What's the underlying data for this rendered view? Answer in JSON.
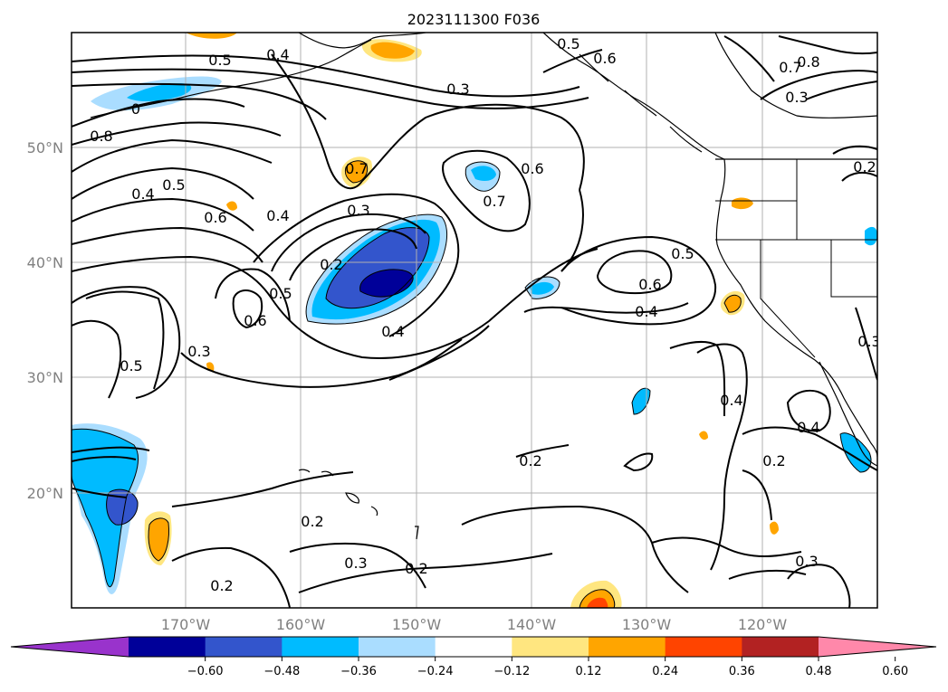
{
  "title": "2023111300 F036",
  "lat_labels": [
    "50°N",
    "40°N",
    "30°N",
    "20°N"
  ],
  "lon_labels": [
    "170°W",
    "160°W",
    "150°W",
    "140°W",
    "130°W",
    "120°W"
  ],
  "contour_labels": {
    "c01": "0.5",
    "c02": "0.4",
    "c03": "0.3",
    "c04": "0.5",
    "c05": "0.6",
    "c06": "0.7",
    "c07": "0.8",
    "c08": "0.3",
    "c09": "0",
    "c10": "0.8",
    "c11": "0.4",
    "c12": "0.5",
    "c13": "0.6",
    "c14": "0.7",
    "c15": "0.4",
    "c16": "0.3",
    "c17": "0.6",
    "c18": "0.7",
    "c19": "0.2",
    "c20": "0.2",
    "c21": "0.5",
    "c22": "0.6",
    "c23": "0.5",
    "c24": "0.6",
    "c25": "0.4",
    "c26": "0.4",
    "c27": "0.3",
    "c28": "0.5",
    "c29": "0.4",
    "c30": "0.4",
    "c31": "0.3",
    "c32": "0.2",
    "c33": "0.2",
    "c34": "0.2",
    "c35": "0.3",
    "c36": "0.2",
    "c37": "0.2",
    "c38": "0.3"
  },
  "colorbar": {
    "ticks": [
      "−0.60",
      "−0.48",
      "−0.36",
      "−0.24",
      "−0.12",
      "0.12",
      "0.24",
      "0.36",
      "0.48",
      "0.60"
    ],
    "colors": [
      "#9933cc",
      "#000099",
      "#3355cc",
      "#00bbff",
      "#aaddff",
      "#ffffff",
      "#ffe680",
      "#ffa500",
      "#ff4400",
      "#b22222",
      "#ff88aa"
    ]
  }
}
